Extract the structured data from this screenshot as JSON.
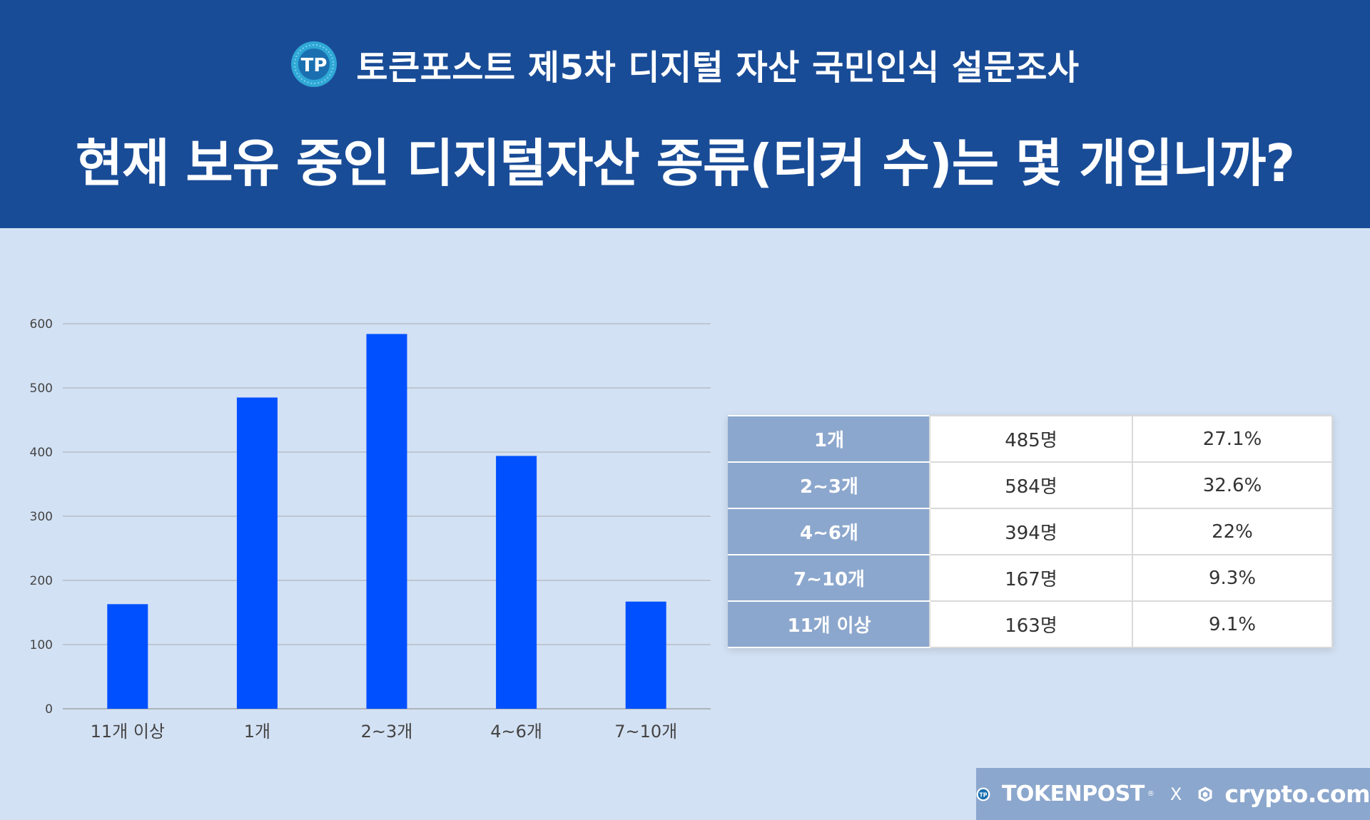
{
  "header": {
    "subtitle": "토큰포스트 제5차 디지털 자산 국민인식 설문조사",
    "title": "현재 보유 중인 디지털자산 종류(티커 수)는 몇 개입니까?"
  },
  "chart_data": {
    "type": "bar",
    "categories": [
      "11개 이상",
      "1개",
      "2~3개",
      "4~6개",
      "7~10개"
    ],
    "values": [
      163,
      485,
      584,
      394,
      167
    ],
    "ylim": [
      0,
      600
    ],
    "yticks": [
      0,
      100,
      200,
      300,
      400,
      500,
      600
    ],
    "grid": true,
    "bar_color": "#0050ff"
  },
  "table": {
    "rows": [
      {
        "category": "1개",
        "count": "485명",
        "percent": "27.1%"
      },
      {
        "category": "2~3개",
        "count": "584명",
        "percent": "32.6%"
      },
      {
        "category": "4~6개",
        "count": "394명",
        "percent": "22%"
      },
      {
        "category": "7~10개",
        "count": "167명",
        "percent": "9.3%"
      },
      {
        "category": "11개 이상",
        "count": "163명",
        "percent": "9.1%"
      }
    ]
  },
  "footer": {
    "brand1": "TOKENPOST",
    "registered": "®",
    "separator": "X",
    "brand2": "crypto.com"
  },
  "colors": {
    "header_bg": "#194c97",
    "page_bg": "#d3e1f4",
    "table_header_bg": "#8ca7cd"
  },
  "icons": {
    "header_logo": "tokenpost-logo-icon",
    "footer_logo1": "tokenpost-logo-icon",
    "footer_logo2": "crypto-com-logo-icon"
  }
}
